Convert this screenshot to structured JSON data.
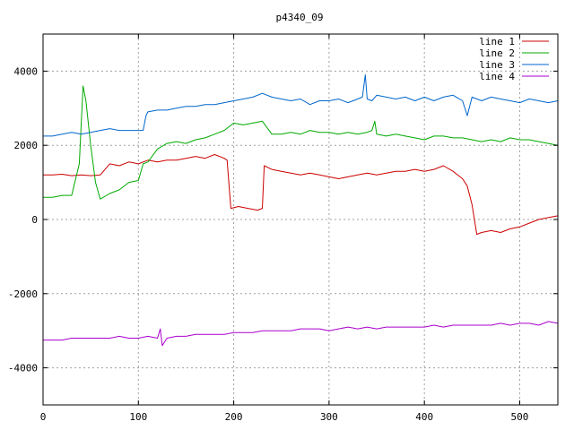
{
  "chart_data": {
    "type": "line",
    "title": "p4340_09",
    "xlabel": "",
    "ylabel": "",
    "xlim": [
      0,
      540
    ],
    "ylim": [
      -5000,
      5000
    ],
    "xticks": [
      0,
      100,
      200,
      300,
      400,
      500
    ],
    "yticks": [
      -4000,
      -2000,
      0,
      2000,
      4000
    ],
    "grid": true,
    "legend_position": "top-right",
    "series": [
      {
        "name": "line 1",
        "color": "#cc0000",
        "x": [
          0,
          10,
          20,
          30,
          40,
          50,
          60,
          70,
          80,
          90,
          100,
          110,
          120,
          130,
          140,
          150,
          160,
          170,
          180,
          190,
          193,
          197,
          205,
          215,
          225,
          230,
          232,
          240,
          250,
          260,
          270,
          280,
          290,
          300,
          310,
          320,
          330,
          340,
          350,
          360,
          370,
          380,
          390,
          400,
          410,
          420,
          430,
          440,
          445,
          450,
          455,
          460,
          470,
          480,
          490,
          500,
          510,
          520,
          530,
          540
        ],
        "values": [
          1200,
          1200,
          1220,
          1180,
          1200,
          1180,
          1200,
          1500,
          1450,
          1550,
          1500,
          1600,
          1550,
          1600,
          1600,
          1650,
          1700,
          1650,
          1750,
          1650,
          1600,
          300,
          350,
          300,
          250,
          300,
          1450,
          1350,
          1300,
          1250,
          1200,
          1250,
          1200,
          1150,
          1100,
          1150,
          1200,
          1250,
          1200,
          1250,
          1300,
          1300,
          1350,
          1300,
          1350,
          1450,
          1300,
          1100,
          900,
          400,
          -400,
          -350,
          -300,
          -350,
          -250,
          -200,
          -100,
          0,
          50,
          100
        ]
      },
      {
        "name": "line 2",
        "color": "#00aa00",
        "x": [
          0,
          10,
          20,
          30,
          38,
          42,
          45,
          50,
          55,
          60,
          70,
          80,
          90,
          100,
          105,
          110,
          120,
          130,
          140,
          150,
          160,
          170,
          180,
          190,
          200,
          210,
          220,
          230,
          240,
          250,
          260,
          270,
          280,
          290,
          300,
          310,
          320,
          330,
          340,
          345,
          348,
          350,
          360,
          370,
          380,
          390,
          400,
          410,
          420,
          430,
          440,
          450,
          460,
          470,
          480,
          490,
          500,
          510,
          520,
          530,
          540
        ],
        "values": [
          600,
          600,
          650,
          650,
          1500,
          3600,
          3200,
          2000,
          1000,
          550,
          700,
          800,
          1000,
          1050,
          1500,
          1550,
          1900,
          2050,
          2100,
          2050,
          2150,
          2200,
          2300,
          2400,
          2600,
          2550,
          2600,
          2650,
          2300,
          2300,
          2350,
          2300,
          2400,
          2350,
          2350,
          2300,
          2350,
          2300,
          2350,
          2400,
          2650,
          2300,
          2250,
          2300,
          2250,
          2200,
          2150,
          2250,
          2250,
          2200,
          2200,
          2150,
          2100,
          2150,
          2100,
          2200,
          2150,
          2150,
          2100,
          2050,
          2000
        ]
      },
      {
        "name": "line 3",
        "color": "#0066cc",
        "x": [
          0,
          10,
          20,
          30,
          40,
          50,
          60,
          70,
          80,
          90,
          100,
          105,
          108,
          110,
          120,
          130,
          140,
          150,
          160,
          170,
          180,
          190,
          200,
          210,
          220,
          230,
          240,
          250,
          260,
          270,
          280,
          290,
          300,
          310,
          320,
          330,
          335,
          338,
          340,
          345,
          350,
          360,
          370,
          380,
          390,
          400,
          410,
          420,
          430,
          440,
          445,
          450,
          460,
          470,
          480,
          490,
          500,
          510,
          520,
          530,
          540
        ],
        "values": [
          2250,
          2250,
          2300,
          2350,
          2300,
          2350,
          2400,
          2450,
          2400,
          2400,
          2400,
          2400,
          2800,
          2900,
          2950,
          2950,
          3000,
          3050,
          3050,
          3100,
          3100,
          3150,
          3200,
          3250,
          3300,
          3400,
          3300,
          3250,
          3200,
          3250,
          3100,
          3200,
          3200,
          3250,
          3150,
          3250,
          3300,
          3900,
          3250,
          3200,
          3350,
          3300,
          3250,
          3300,
          3200,
          3300,
          3200,
          3300,
          3350,
          3200,
          2800,
          3300,
          3200,
          3300,
          3250,
          3200,
          3150,
          3250,
          3200,
          3150,
          3200
        ]
      },
      {
        "name": "line 4",
        "color": "#aa00cc",
        "x": [
          0,
          10,
          20,
          30,
          40,
          50,
          60,
          70,
          80,
          90,
          100,
          110,
          120,
          123,
          125,
          130,
          140,
          150,
          160,
          170,
          180,
          190,
          200,
          210,
          220,
          230,
          240,
          250,
          260,
          270,
          280,
          290,
          300,
          310,
          320,
          330,
          340,
          350,
          360,
          370,
          380,
          390,
          400,
          410,
          420,
          430,
          440,
          450,
          460,
          470,
          480,
          490,
          500,
          510,
          520,
          530,
          540
        ],
        "values": [
          -3250,
          -3250,
          -3250,
          -3200,
          -3200,
          -3200,
          -3200,
          -3200,
          -3150,
          -3200,
          -3200,
          -3150,
          -3200,
          -2950,
          -3400,
          -3200,
          -3150,
          -3150,
          -3100,
          -3100,
          -3100,
          -3100,
          -3050,
          -3050,
          -3050,
          -3000,
          -3000,
          -3000,
          -3000,
          -2950,
          -2950,
          -2950,
          -3000,
          -2950,
          -2900,
          -2950,
          -2900,
          -2950,
          -2900,
          -2900,
          -2900,
          -2900,
          -2900,
          -2850,
          -2900,
          -2850,
          -2850,
          -2850,
          -2850,
          -2850,
          -2800,
          -2850,
          -2800,
          -2800,
          -2850,
          -2750,
          -2800
        ]
      }
    ]
  }
}
